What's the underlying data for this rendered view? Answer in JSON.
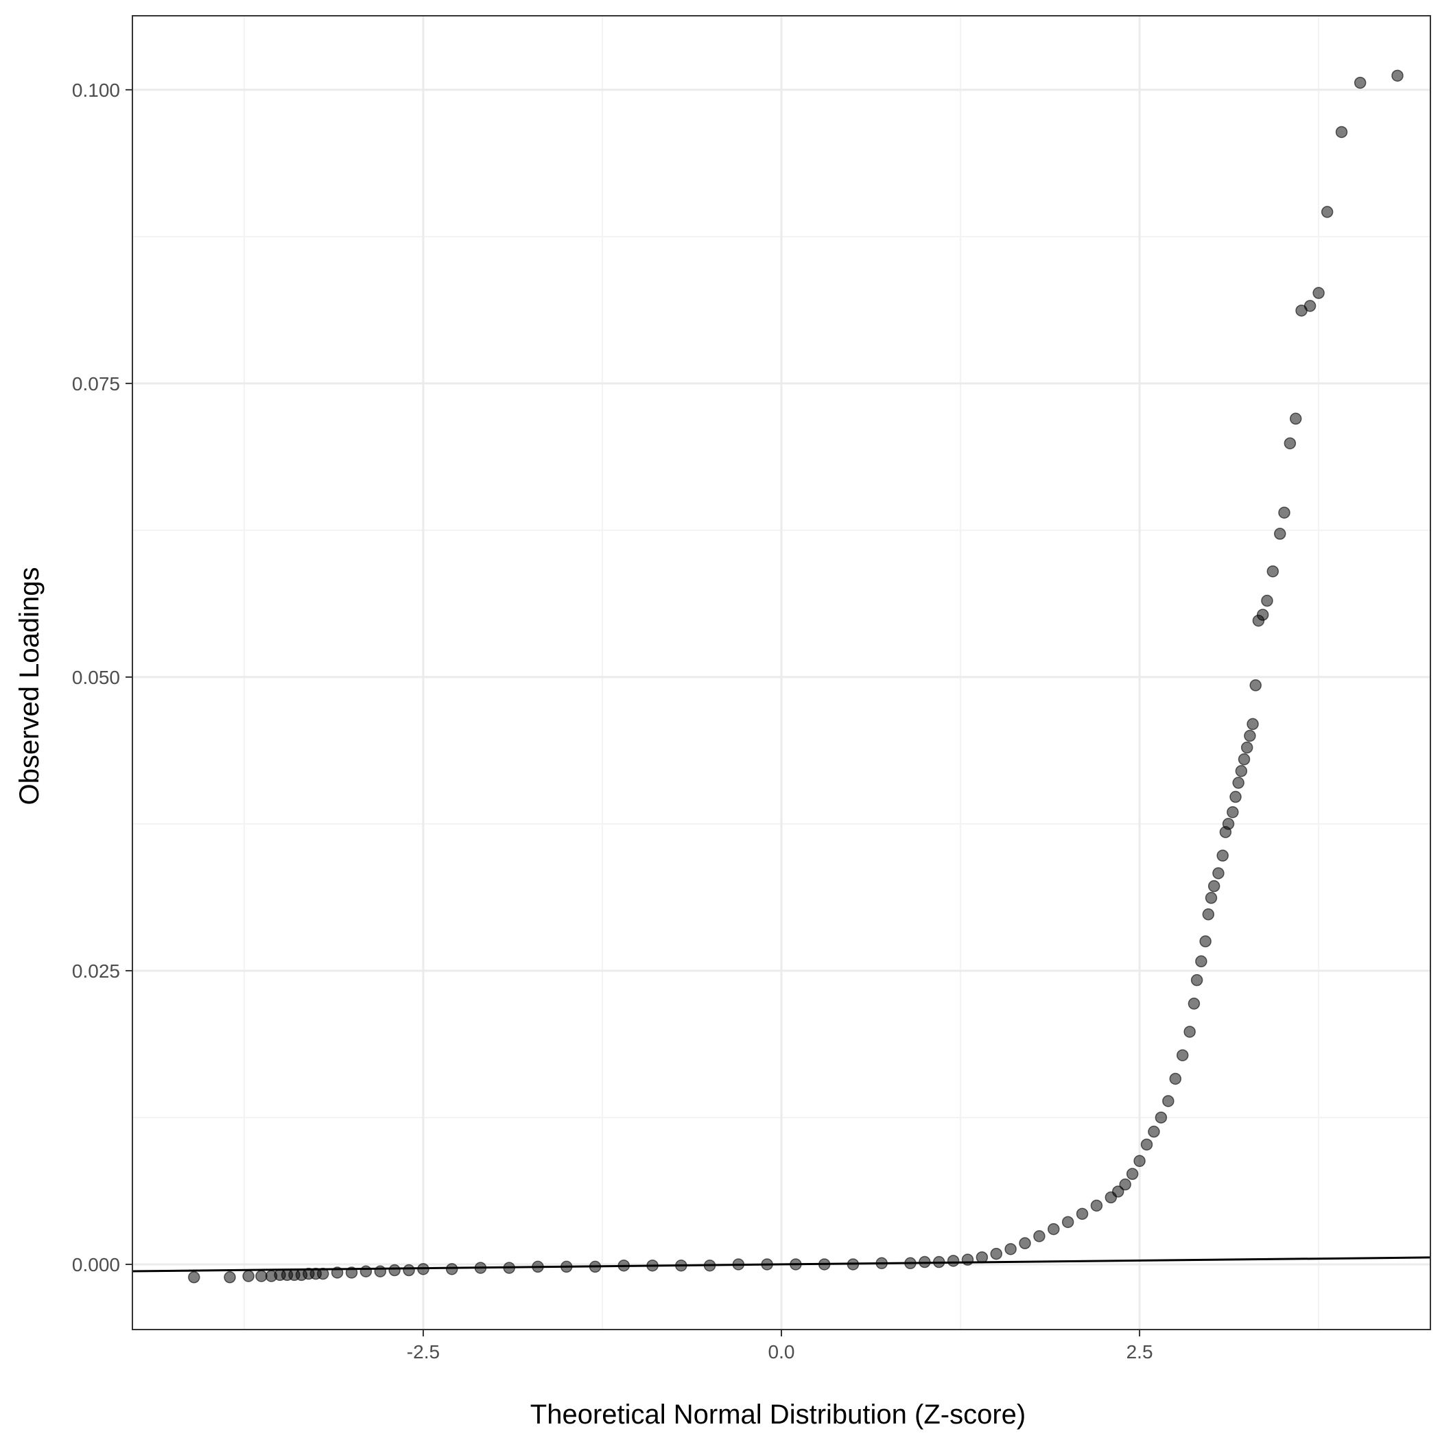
{
  "chart_data": {
    "type": "scatter",
    "title": "",
    "xlabel": "Theoretical Normal Distribution (Z-score)",
    "ylabel": "Observed Loadings",
    "xlim": [
      -4.53,
      4.53
    ],
    "ylim": [
      -0.00555,
      0.1063
    ],
    "x_ticks": [
      -2.5,
      0.0,
      2.5
    ],
    "x_tick_labels": [
      "-2.5",
      "0.0",
      "2.5"
    ],
    "y_ticks": [
      0.0,
      0.025,
      0.05,
      0.075,
      0.1
    ],
    "y_tick_labels": [
      "0.000",
      "0.025",
      "0.050",
      "0.075",
      "0.100"
    ],
    "grid": true,
    "reference_line": {
      "intercept": 0.0,
      "slope": 0.00013
    },
    "colors": {
      "points": "#000000",
      "line": "#000000",
      "panel_border": "#333333",
      "grid_major": "#ebebeb",
      "grid_minor": "#f3f3f3"
    },
    "points": [
      [
        -4.1,
        -0.0011
      ],
      [
        -3.85,
        -0.0011
      ],
      [
        -3.72,
        -0.001
      ],
      [
        -3.63,
        -0.001
      ],
      [
        -3.56,
        -0.001
      ],
      [
        -3.5,
        -0.0009
      ],
      [
        -3.45,
        -0.0009
      ],
      [
        -3.4,
        -0.0009
      ],
      [
        -3.35,
        -0.0009
      ],
      [
        -3.3,
        -0.0008
      ],
      [
        -3.25,
        -0.0008
      ],
      [
        -3.2,
        -0.0008
      ],
      [
        -3.1,
        -0.0007
      ],
      [
        -3.0,
        -0.0007
      ],
      [
        -2.9,
        -0.0006
      ],
      [
        -2.8,
        -0.0006
      ],
      [
        -2.7,
        -0.0005
      ],
      [
        -2.6,
        -0.0005
      ],
      [
        -2.5,
        -0.0004
      ],
      [
        -2.3,
        -0.0004
      ],
      [
        -2.1,
        -0.0003
      ],
      [
        -1.9,
        -0.0003
      ],
      [
        -1.7,
        -0.0002
      ],
      [
        -1.5,
        -0.0002
      ],
      [
        -1.3,
        -0.0002
      ],
      [
        -1.1,
        -0.0001
      ],
      [
        -0.9,
        -0.0001
      ],
      [
        -0.7,
        -0.0001
      ],
      [
        -0.5,
        -0.0001
      ],
      [
        -0.3,
        0.0
      ],
      [
        -0.1,
        0.0
      ],
      [
        0.1,
        0.0
      ],
      [
        0.3,
        0.0
      ],
      [
        0.5,
        0.0
      ],
      [
        0.7,
        0.0001
      ],
      [
        0.9,
        0.0001
      ],
      [
        1.0,
        0.0002
      ],
      [
        1.1,
        0.0002
      ],
      [
        1.2,
        0.0003
      ],
      [
        1.3,
        0.0004
      ],
      [
        1.4,
        0.0006
      ],
      [
        1.5,
        0.0009
      ],
      [
        1.6,
        0.0013
      ],
      [
        1.7,
        0.0018
      ],
      [
        1.8,
        0.0024
      ],
      [
        1.9,
        0.003
      ],
      [
        2.0,
        0.0036
      ],
      [
        2.1,
        0.0043
      ],
      [
        2.2,
        0.005
      ],
      [
        2.3,
        0.0057
      ],
      [
        2.35,
        0.0062
      ],
      [
        2.4,
        0.0068
      ],
      [
        2.45,
        0.0077
      ],
      [
        2.5,
        0.0088
      ],
      [
        2.55,
        0.0102
      ],
      [
        2.6,
        0.0113
      ],
      [
        2.65,
        0.0125
      ],
      [
        2.7,
        0.0139
      ],
      [
        2.75,
        0.0158
      ],
      [
        2.8,
        0.0178
      ],
      [
        2.85,
        0.0198
      ],
      [
        2.88,
        0.0222
      ],
      [
        2.9,
        0.0242
      ],
      [
        2.93,
        0.0258
      ],
      [
        2.96,
        0.0275
      ],
      [
        2.98,
        0.0298
      ],
      [
        3.0,
        0.0312
      ],
      [
        3.02,
        0.0322
      ],
      [
        3.05,
        0.0333
      ],
      [
        3.08,
        0.0348
      ],
      [
        3.1,
        0.0368
      ],
      [
        3.12,
        0.0375
      ],
      [
        3.15,
        0.0385
      ],
      [
        3.17,
        0.0398
      ],
      [
        3.19,
        0.041
      ],
      [
        3.21,
        0.042
      ],
      [
        3.23,
        0.043
      ],
      [
        3.25,
        0.044
      ],
      [
        3.27,
        0.045
      ],
      [
        3.29,
        0.046
      ],
      [
        3.31,
        0.0493
      ],
      [
        3.33,
        0.0548
      ],
      [
        3.36,
        0.0553
      ],
      [
        3.39,
        0.0565
      ],
      [
        3.43,
        0.059
      ],
      [
        3.48,
        0.0622
      ],
      [
        3.51,
        0.064
      ],
      [
        3.55,
        0.0699
      ],
      [
        3.59,
        0.072
      ],
      [
        3.63,
        0.0812
      ],
      [
        3.69,
        0.0816
      ],
      [
        3.75,
        0.0827
      ],
      [
        3.81,
        0.0896
      ],
      [
        3.91,
        0.0964
      ],
      [
        4.04,
        0.1006
      ],
      [
        4.3,
        0.1012
      ]
    ]
  }
}
